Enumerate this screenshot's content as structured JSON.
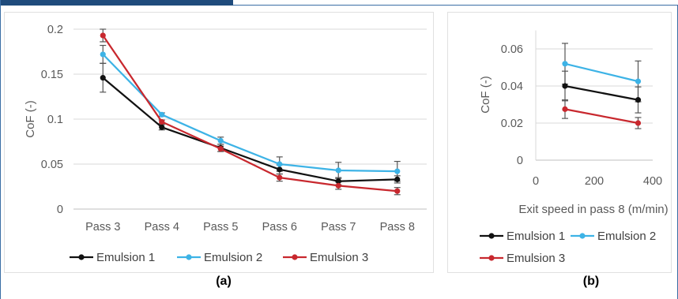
{
  "chart_data": [
    {
      "type": "line",
      "panel_label": "(a)",
      "ylabel": "CoF (-)",
      "categories": [
        "Pass 3",
        "Pass 4",
        "Pass 5",
        "Pass 6",
        "Pass 7",
        "Pass 8"
      ],
      "ylim": [
        0,
        0.2
      ],
      "yticks": [
        0,
        0.05,
        0.1,
        0.15,
        0.2
      ],
      "grid": true,
      "legend": "bottom",
      "series": [
        {
          "name": "Emulsion 1",
          "color": "#111111",
          "values": [
            0.146,
            0.091,
            0.068,
            0.044,
            0.031,
            0.033
          ],
          "error": [
            0.016,
            0.003,
            0.004,
            0.005,
            0.004,
            0.004
          ]
        },
        {
          "name": "Emulsion 2",
          "color": "#3db3e6",
          "values": [
            0.172,
            0.105,
            0.076,
            0.05,
            0.043,
            0.042
          ],
          "error": [
            0.01,
            0.002,
            0.004,
            0.008,
            0.009,
            0.011
          ]
        },
        {
          "name": "Emulsion 3",
          "color": "#c8282e",
          "values": [
            0.193,
            0.097,
            0.067,
            0.035,
            0.026,
            0.02
          ],
          "error": [
            0.007,
            0.002,
            0.003,
            0.004,
            0.004,
            0.004
          ]
        }
      ]
    },
    {
      "type": "line",
      "panel_label": "(b)",
      "xlabel": "Exit speed in pass 8 (m/min)",
      "ylabel": "CoF (-)",
      "xlim": [
        0,
        400
      ],
      "xticks": [
        0,
        200,
        400
      ],
      "ylim": [
        0,
        0.07
      ],
      "yticks": [
        0,
        0.02,
        0.04,
        0.06
      ],
      "grid": true,
      "legend": "bottom",
      "series": [
        {
          "name": "Emulsion 1",
          "color": "#111111",
          "x": [
            100,
            350
          ],
          "y": [
            0.04,
            0.0325
          ],
          "error": [
            0.008,
            0.007
          ]
        },
        {
          "name": "Emulsion 2",
          "color": "#3db3e6",
          "x": [
            100,
            350
          ],
          "y": [
            0.052,
            0.0425
          ],
          "error": [
            0.011,
            0.011
          ]
        },
        {
          "name": "Emulsion 3",
          "color": "#c8282e",
          "x": [
            100,
            350
          ],
          "y": [
            0.0275,
            0.02
          ],
          "error": [
            0.005,
            0.003
          ]
        }
      ]
    }
  ]
}
